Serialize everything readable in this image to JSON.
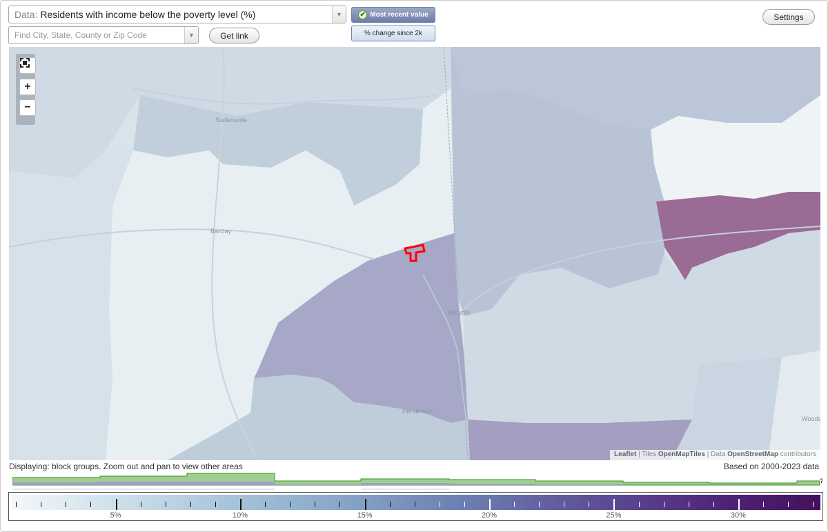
{
  "controls": {
    "data_prefix": "Data:",
    "data_value": "Residents with income below the poverty level (%)",
    "location_placeholder": "Find City, State, County or Zip Code",
    "get_link_label": "Get link",
    "settings_label": "Settings",
    "most_recent_label": "Most recent value",
    "change_label": "% change since 2k"
  },
  "map": {
    "places": [
      "Sudlersville",
      "Barclay",
      "Marydel",
      "Henderson",
      "Woods"
    ],
    "attribution": {
      "leaflet": "Leaflet",
      "sep1": "|",
      "tiles": "Tiles",
      "tiles_link": "OpenMapTiles",
      "sep2": "|",
      "data": "Data",
      "data_link": "OpenStreetMap",
      "contrib": "contributors"
    },
    "colors": {
      "light": "#e7eff3",
      "pale": "#d4e0e8",
      "blueish": "#c2cfdd",
      "medium": "#b6bfd4",
      "purple": "#a4a5c6",
      "magenta": "#9a6b95",
      "highlight": "#ff0000"
    }
  },
  "footer": {
    "displaying": "Displaying: block groups. Zoom out and pan to view other areas",
    "based_on": "Based on 2000-2023 data",
    "unknown_mark": "?"
  },
  "legend": {
    "labels": [
      "5%",
      "10%",
      "15%",
      "20%",
      "25%",
      "30%"
    ],
    "values": [
      5,
      10,
      15,
      20,
      25,
      30
    ],
    "range": [
      0.8,
      33.3
    ]
  }
}
